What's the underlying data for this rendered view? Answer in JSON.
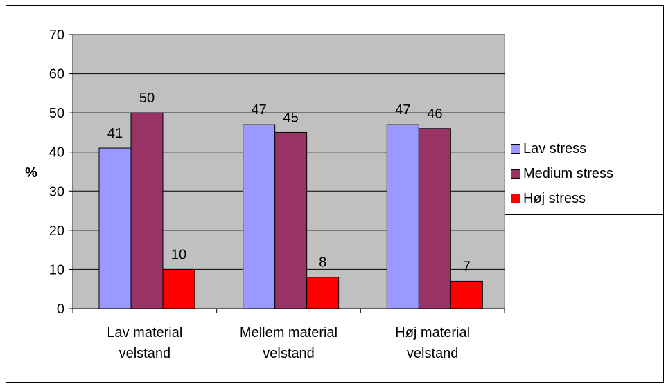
{
  "colors": {
    "plot_background": "#c0c0c0",
    "lav_stress": "#9999ff",
    "medium_stress": "#993366",
    "hoj_stress": "#ff0000"
  },
  "chart_data": {
    "type": "bar",
    "title": "",
    "xlabel": "",
    "ylabel": "%",
    "ylim": [
      0,
      70
    ],
    "yticks": [
      0,
      10,
      20,
      30,
      40,
      50,
      60,
      70
    ],
    "grid": true,
    "legend_position": "right",
    "categories": [
      [
        "Lav material",
        "velstand"
      ],
      [
        "Mellem material",
        "velstand"
      ],
      [
        "Høj material",
        "velstand"
      ]
    ],
    "series": [
      {
        "name": "Lav stress",
        "color": "#9999ff",
        "values": [
          41,
          47,
          47
        ]
      },
      {
        "name": "Medium stress",
        "color": "#993366",
        "values": [
          50,
          45,
          46
        ]
      },
      {
        "name": "Høj stress",
        "color": "#ff0000",
        "values": [
          10,
          8,
          7
        ]
      }
    ]
  }
}
